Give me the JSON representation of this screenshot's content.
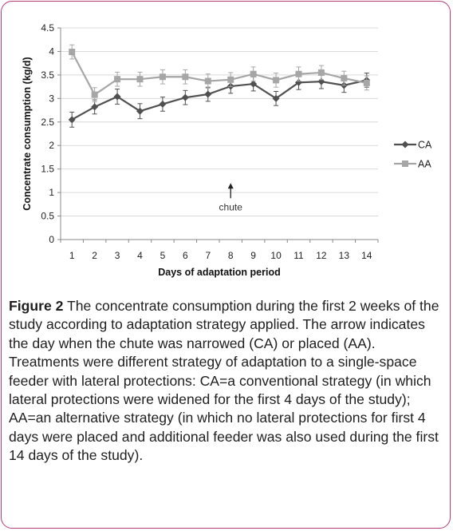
{
  "chart_data": {
    "type": "line",
    "x": [
      1,
      2,
      3,
      4,
      5,
      6,
      7,
      8,
      9,
      10,
      11,
      12,
      13,
      14
    ],
    "series": [
      {
        "name": "CA",
        "color": "#505050",
        "marker": "diamond",
        "values": [
          2.55,
          2.82,
          3.04,
          2.73,
          2.88,
          3.02,
          3.09,
          3.26,
          3.31,
          3.0,
          3.34,
          3.36,
          3.28,
          3.39
        ],
        "error": [
          0.16,
          0.15,
          0.16,
          0.16,
          0.15,
          0.15,
          0.15,
          0.15,
          0.15,
          0.15,
          0.15,
          0.15,
          0.15,
          0.15
        ]
      },
      {
        "name": "AA",
        "color": "#a6a6a6",
        "marker": "square",
        "values": [
          3.99,
          3.08,
          3.41,
          3.41,
          3.46,
          3.46,
          3.37,
          3.4,
          3.52,
          3.39,
          3.52,
          3.55,
          3.43,
          3.33
        ],
        "error": [
          0.15,
          0.15,
          0.15,
          0.15,
          0.15,
          0.15,
          0.15,
          0.15,
          0.15,
          0.15,
          0.15,
          0.15,
          0.15,
          0.15
        ]
      }
    ],
    "xlabel": "Days of adaptation period",
    "ylabel": "Concentrate consumption (kg/d)",
    "ylim": [
      0,
      4.5
    ],
    "yticks": [
      "0",
      "0.5",
      "1",
      "1.5",
      "2",
      "2.5",
      "3",
      "3.5",
      "4",
      "4.5"
    ],
    "grid": true,
    "legend_position": "right",
    "annotation": {
      "text": "chute",
      "x": 8,
      "y": 1.15
    }
  },
  "caption": {
    "label": "Figure 2",
    "text": " The concentrate consumption during the first 2 weeks of the study according to adaptation strategy applied. The arrow indicates the day when the chute was narrowed (CA) or placed (AA). Treatments were different strategy of adaptation to a single-space feeder with lateral protections: CA=a conventional strategy (in which lateral protections were widened for the first 4 days of the study); AA=an alternative strategy (in which no lateral protections for first 4 days were placed and additional feeder was also used during the first 14 days of the study)."
  },
  "colors": {
    "border": "#b73a7a",
    "grid": "#d9d9d9",
    "axis": "#888888"
  }
}
